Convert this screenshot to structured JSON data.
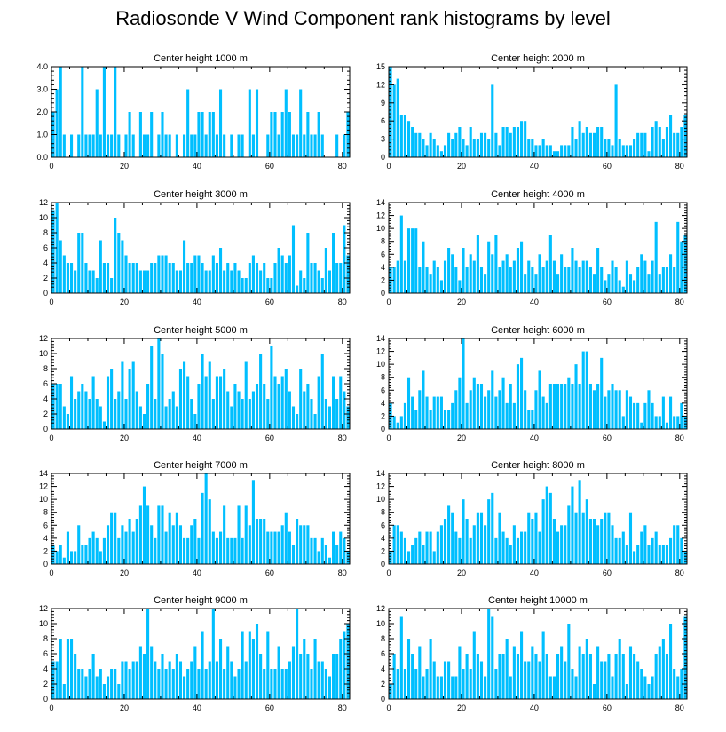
{
  "title": "Radiosonde V Wind Component rank histograms by level",
  "chart_data": [
    {
      "type": "bar",
      "title": "Center height 1000 m",
      "xlim": [
        0,
        82
      ],
      "ylim": [
        0,
        4
      ],
      "xticks": [
        0,
        20,
        40,
        60,
        80
      ],
      "xtick_labels": [
        "0",
        "20",
        "40",
        "60",
        "80"
      ],
      "yticks": [
        0,
        1,
        2,
        3,
        4
      ],
      "ytick_labels": [
        "0.0",
        "1.0",
        "2.0",
        "3.0",
        "4.0"
      ],
      "values": [
        2,
        3,
        4,
        1,
        0,
        1,
        0,
        1,
        4,
        1,
        1,
        1,
        3,
        1,
        4,
        1,
        1,
        4,
        1,
        0,
        1,
        2,
        1,
        0,
        2,
        1,
        1,
        2,
        0,
        1,
        2,
        1,
        1,
        0,
        1,
        0,
        1,
        3,
        1,
        1,
        2,
        2,
        1,
        2,
        2,
        1,
        3,
        1,
        0,
        1,
        0,
        1,
        1,
        0,
        3,
        1,
        3,
        0,
        0,
        1,
        2,
        2,
        1,
        2,
        3,
        2,
        1,
        1,
        3,
        1,
        2,
        1,
        1,
        2,
        1,
        0,
        0,
        0,
        1,
        0,
        1,
        2
      ]
    },
    {
      "type": "bar",
      "title": "Center height 2000 m",
      "xlim": [
        0,
        82
      ],
      "ylim": [
        0,
        15
      ],
      "xticks": [
        0,
        20,
        40,
        60,
        80
      ],
      "xtick_labels": [
        "0",
        "20",
        "40",
        "60",
        "80"
      ],
      "yticks": [
        0,
        3,
        6,
        9,
        12,
        15
      ],
      "ytick_labels": [
        "0",
        "3",
        "6",
        "9",
        "12",
        "15"
      ],
      "values": [
        15,
        12,
        13,
        7,
        7,
        6,
        5,
        4,
        4,
        3,
        2,
        4,
        3,
        2,
        1,
        2,
        4,
        3,
        4,
        5,
        3,
        2,
        5,
        3,
        3,
        4,
        4,
        3,
        12,
        4,
        2,
        5,
        5,
        4,
        5,
        5,
        6,
        6,
        3,
        3,
        2,
        2,
        3,
        2,
        2,
        1,
        1,
        2,
        2,
        2,
        5,
        3,
        6,
        4,
        5,
        4,
        4,
        5,
        5,
        3,
        3,
        2,
        12,
        3,
        2,
        2,
        2,
        3,
        4,
        4,
        4,
        1,
        5,
        6,
        5,
        3,
        5,
        7,
        4,
        4,
        5,
        7
      ]
    },
    {
      "type": "bar",
      "title": "Center height 3000 m",
      "xlim": [
        0,
        82
      ],
      "ylim": [
        0,
        12
      ],
      "xticks": [
        0,
        20,
        40,
        60,
        80
      ],
      "xtick_labels": [
        "0",
        "20",
        "40",
        "60",
        "80"
      ],
      "yticks": [
        0,
        2,
        4,
        6,
        8,
        10,
        12
      ],
      "ytick_labels": [
        "0",
        "2",
        "4",
        "6",
        "8",
        "10",
        "12"
      ],
      "values": [
        11,
        12,
        7,
        5,
        4,
        4,
        3,
        8,
        8,
        4,
        3,
        3,
        2,
        7,
        4,
        4,
        2,
        10,
        8,
        7,
        5,
        4,
        4,
        4,
        3,
        3,
        3,
        4,
        4,
        5,
        5,
        5,
        4,
        4,
        3,
        3,
        7,
        4,
        4,
        5,
        5,
        4,
        3,
        3,
        5,
        4,
        6,
        3,
        4,
        3,
        4,
        3,
        2,
        2,
        4,
        5,
        4,
        3,
        4,
        2,
        2,
        4,
        6,
        5,
        4,
        5,
        9,
        1,
        3,
        2,
        8,
        4,
        4,
        3,
        2,
        6,
        3,
        8,
        4,
        4,
        9,
        5
      ]
    },
    {
      "type": "bar",
      "title": "Center height 4000 m",
      "xlim": [
        0,
        82
      ],
      "ylim": [
        0,
        14
      ],
      "xticks": [
        0,
        20,
        40,
        60,
        80
      ],
      "xtick_labels": [
        "0",
        "20",
        "40",
        "60",
        "80"
      ],
      "yticks": [
        0,
        2,
        4,
        6,
        8,
        10,
        12,
        14
      ],
      "ytick_labels": [
        "0",
        "2",
        "4",
        "6",
        "8",
        "10",
        "12",
        "14"
      ],
      "values": [
        4,
        4,
        5,
        12,
        5,
        10,
        10,
        10,
        4,
        8,
        4,
        3,
        5,
        4,
        2,
        5,
        7,
        6,
        4,
        2,
        7,
        4,
        6,
        5,
        9,
        4,
        3,
        8,
        6,
        9,
        4,
        5,
        6,
        4,
        5,
        7,
        8,
        3,
        5,
        4,
        3,
        6,
        4,
        5,
        9,
        5,
        3,
        6,
        4,
        4,
        7,
        5,
        4,
        5,
        5,
        4,
        3,
        7,
        4,
        2,
        3,
        5,
        4,
        2,
        1,
        5,
        3,
        2,
        4,
        6,
        5,
        3,
        5,
        11,
        3,
        4,
        4,
        6,
        4,
        11,
        8,
        9
      ]
    },
    {
      "type": "bar",
      "title": "Center height 5000 m",
      "xlim": [
        0,
        82
      ],
      "ylim": [
        0,
        12
      ],
      "xticks": [
        0,
        20,
        40,
        60,
        80
      ],
      "xtick_labels": [
        "0",
        "20",
        "40",
        "60",
        "80"
      ],
      "yticks": [
        0,
        2,
        4,
        6,
        8,
        10,
        12
      ],
      "ytick_labels": [
        "0",
        "2",
        "4",
        "6",
        "8",
        "10",
        "12"
      ],
      "values": [
        6,
        6,
        6,
        3,
        2,
        7,
        4,
        5,
        6,
        5,
        4,
        7,
        4,
        3,
        1,
        7,
        8,
        4,
        5,
        9,
        4,
        8,
        9,
        5,
        3,
        2,
        6,
        11,
        4,
        12,
        10,
        3,
        4,
        5,
        3,
        8,
        9,
        7,
        4,
        2,
        6,
        10,
        7,
        9,
        4,
        7,
        7,
        8,
        5,
        3,
        6,
        5,
        4,
        9,
        4,
        5,
        6,
        10,
        6,
        4,
        11,
        7,
        6,
        7,
        8,
        5,
        3,
        2,
        8,
        5,
        6,
        4,
        2,
        7,
        10,
        4,
        3,
        7,
        4,
        7,
        5,
        3
      ]
    },
    {
      "type": "bar",
      "title": "Center height 6000 m",
      "xlim": [
        0,
        82
      ],
      "ylim": [
        0,
        14
      ],
      "xticks": [
        0,
        20,
        40,
        60,
        80
      ],
      "xtick_labels": [
        "0",
        "20",
        "40",
        "60",
        "80"
      ],
      "yticks": [
        0,
        2,
        4,
        6,
        8,
        10,
        12,
        14
      ],
      "ytick_labels": [
        "0",
        "2",
        "4",
        "6",
        "8",
        "10",
        "12",
        "14"
      ],
      "values": [
        4,
        2,
        1,
        2,
        4,
        8,
        5,
        3,
        6,
        9,
        5,
        3,
        5,
        5,
        5,
        3,
        3,
        4,
        6,
        8,
        14,
        4,
        6,
        8,
        7,
        7,
        5,
        6,
        9,
        5,
        6,
        8,
        4,
        7,
        4,
        10,
        11,
        6,
        3,
        3,
        6,
        9,
        5,
        4,
        7,
        7,
        7,
        7,
        7,
        8,
        7,
        10,
        7,
        12,
        12,
        7,
        6,
        7,
        11,
        5,
        6,
        7,
        6,
        6,
        2,
        6,
        5,
        4,
        4,
        1,
        4,
        6,
        4,
        2,
        2,
        5,
        1,
        5,
        2,
        2,
        4,
        2
      ]
    },
    {
      "type": "bar",
      "title": "Center height 7000 m",
      "xlim": [
        0,
        82
      ],
      "ylim": [
        0,
        14
      ],
      "xticks": [
        0,
        20,
        40,
        60,
        80
      ],
      "xtick_labels": [
        "0",
        "20",
        "40",
        "60",
        "80"
      ],
      "yticks": [
        0,
        2,
        4,
        6,
        8,
        10,
        12,
        14
      ],
      "ytick_labels": [
        "0",
        "2",
        "4",
        "6",
        "8",
        "10",
        "12",
        "14"
      ],
      "values": [
        3,
        2,
        3,
        1,
        5,
        2,
        2,
        6,
        3,
        3,
        4,
        5,
        4,
        2,
        4,
        6,
        8,
        8,
        4,
        6,
        5,
        7,
        5,
        7,
        9,
        12,
        9,
        6,
        4,
        9,
        9,
        5,
        8,
        6,
        8,
        6,
        4,
        4,
        6,
        7,
        4,
        11,
        14,
        10,
        5,
        4,
        5,
        9,
        4,
        4,
        4,
        9,
        4,
        9,
        6,
        13,
        7,
        7,
        7,
        5,
        5,
        5,
        5,
        6,
        8,
        5,
        3,
        7,
        6,
        6,
        6,
        4,
        4,
        2,
        4,
        3,
        1,
        5,
        3,
        5,
        4,
        2
      ]
    },
    {
      "type": "bar",
      "title": "Center height 8000 m",
      "xlim": [
        0,
        82
      ],
      "ylim": [
        0,
        14
      ],
      "xticks": [
        0,
        20,
        40,
        60,
        80
      ],
      "xtick_labels": [
        "0",
        "20",
        "40",
        "60",
        "80"
      ],
      "yticks": [
        0,
        2,
        4,
        6,
        8,
        10,
        12,
        14
      ],
      "ytick_labels": [
        "0",
        "2",
        "4",
        "6",
        "8",
        "10",
        "12",
        "14"
      ],
      "values": [
        2,
        6,
        6,
        5,
        4,
        2,
        3,
        4,
        5,
        3,
        5,
        5,
        2,
        5,
        6,
        7,
        9,
        8,
        5,
        4,
        10,
        7,
        4,
        6,
        8,
        8,
        6,
        10,
        11,
        4,
        8,
        5,
        4,
        3,
        6,
        4,
        5,
        5,
        8,
        7,
        8,
        5,
        10,
        12,
        11,
        7,
        5,
        6,
        6,
        9,
        12,
        8,
        13,
        8,
        10,
        7,
        7,
        6,
        7,
        8,
        8,
        6,
        4,
        4,
        5,
        3,
        8,
        2,
        3,
        5,
        6,
        3,
        4,
        5,
        3,
        3,
        3,
        4,
        6,
        6,
        4,
        2
      ]
    },
    {
      "type": "bar",
      "title": "Center height 9000 m",
      "xlim": [
        0,
        82
      ],
      "ylim": [
        0,
        12
      ],
      "xticks": [
        0,
        20,
        40,
        60,
        80
      ],
      "xtick_labels": [
        "0",
        "20",
        "40",
        "60",
        "80"
      ],
      "yticks": [
        0,
        2,
        4,
        6,
        8,
        10,
        12
      ],
      "ytick_labels": [
        "0",
        "2",
        "4",
        "6",
        "8",
        "10",
        "12"
      ],
      "values": [
        5,
        5,
        8,
        2,
        8,
        8,
        6,
        4,
        4,
        3,
        4,
        6,
        3,
        4,
        2,
        3,
        4,
        4,
        2,
        5,
        5,
        4,
        5,
        5,
        7,
        6,
        12,
        7,
        5,
        4,
        6,
        4,
        5,
        4,
        6,
        5,
        3,
        4,
        5,
        7,
        4,
        9,
        4,
        5,
        12,
        5,
        8,
        4,
        7,
        5,
        3,
        4,
        9,
        5,
        9,
        8,
        10,
        6,
        4,
        9,
        4,
        4,
        7,
        4,
        4,
        5,
        7,
        12,
        6,
        8,
        6,
        4,
        8,
        5,
        5,
        4,
        3,
        6,
        6,
        8,
        9,
        10
      ]
    },
    {
      "type": "bar",
      "title": "Center height 10000 m",
      "xlim": [
        0,
        82
      ],
      "ylim": [
        0,
        12
      ],
      "xticks": [
        0,
        20,
        40,
        60,
        80
      ],
      "xtick_labels": [
        "0",
        "20",
        "40",
        "60",
        "80"
      ],
      "yticks": [
        0,
        2,
        4,
        6,
        8,
        10,
        12
      ],
      "ytick_labels": [
        "0",
        "2",
        "4",
        "6",
        "8",
        "10",
        "12"
      ],
      "values": [
        2,
        6,
        4,
        11,
        4,
        8,
        6,
        4,
        7,
        3,
        4,
        8,
        5,
        3,
        3,
        5,
        5,
        3,
        3,
        7,
        4,
        6,
        4,
        9,
        6,
        5,
        3,
        12,
        11,
        4,
        6,
        6,
        8,
        3,
        7,
        6,
        9,
        5,
        5,
        7,
        6,
        5,
        9,
        6,
        3,
        3,
        6,
        7,
        5,
        10,
        4,
        3,
        7,
        6,
        8,
        6,
        2,
        7,
        5,
        5,
        6,
        3,
        6,
        8,
        6,
        2,
        7,
        6,
        5,
        4,
        3,
        2,
        3,
        6,
        7,
        8,
        6,
        10,
        4,
        3,
        4,
        11
      ]
    }
  ]
}
